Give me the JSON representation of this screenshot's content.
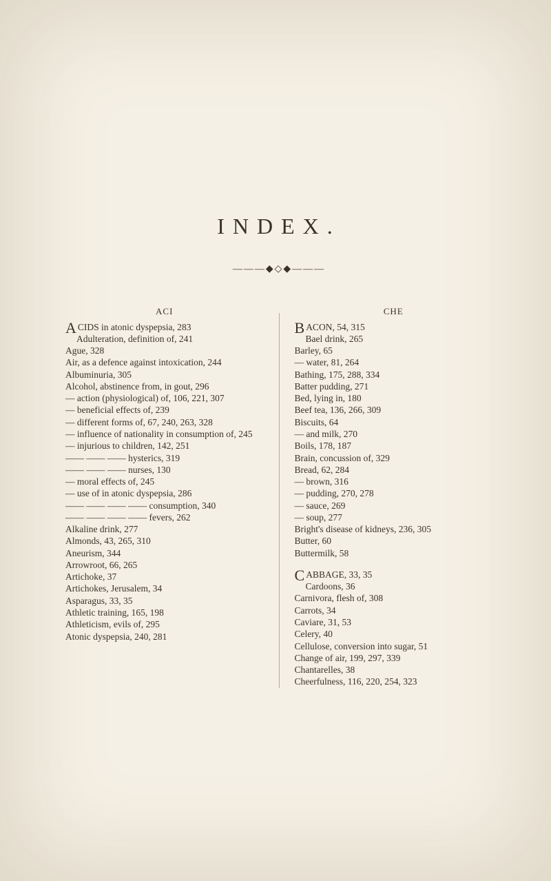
{
  "title": "INDEX.",
  "divider": "———◆◇◆———",
  "left": {
    "header": "ACI",
    "dropcap": "A",
    "first": "CIDS in atonic dyspepsia, 283",
    "first_cont": "Adulteration, definition of, 241",
    "entries": [
      "Ague, 328",
      "Air, as a defence against intoxication, 244",
      "Albuminuria, 305",
      "Alcohol, abstinence from, in gout, 296",
      "— action (physiological) of, 106, 221, 307",
      "— beneficial effects of, 239",
      "— different forms of, 67, 240, 263, 328",
      "— influence of nationality in consumption of, 245",
      "— injurious to children, 142, 251",
      "—— —— —— hysterics, 319",
      "—— —— —— nurses, 130",
      "— moral effects of, 245",
      "— use of in atonic dyspepsia, 286",
      "—— —— —— —— consumption, 340",
      "—— —— —— —— fevers, 262",
      "Alkaline drink, 277",
      "Almonds, 43, 265, 310",
      "Aneurism, 344",
      "Arrowroot, 66, 265",
      "Artichoke, 37",
      "Artichokes, Jerusalem, 34",
      "Asparagus, 33, 35",
      "Athletic training, 165, 198",
      "Athleticism, evils of, 295",
      "Atonic dyspepsia, 240, 281"
    ]
  },
  "right": {
    "header": "CHE",
    "dropcap": "B",
    "first": "ACON, 54, 315",
    "first_cont": "Bael drink, 265",
    "entries": [
      "Barley, 65",
      "— water, 81, 264",
      "Bathing, 175, 288, 334",
      "Batter pudding, 271",
      "Bed, lying in, 180",
      "Beef tea, 136, 266, 309",
      "Biscuits, 64",
      "— and milk, 270",
      "Boils, 178, 187",
      "Brain, concussion of, 329",
      "Bread, 62, 284",
      "— brown, 316",
      "— pudding, 270, 278",
      "— sauce, 269",
      "— soup, 277",
      "Bright's disease of kidneys, 236, 305",
      "Butter, 60",
      "Buttermilk, 58"
    ],
    "dropcap2": "C",
    "first2": "ABBAGE, 33, 35",
    "first2_cont": "Cardoons, 36",
    "entries2": [
      "Carnivora, flesh of, 308",
      "Carrots, 34",
      "Caviare, 31, 53",
      "Celery, 40",
      "Cellulose, conversion into sugar, 51",
      "Change of air, 199, 297, 339",
      "Chantarelles, 38",
      "Cheerfulness, 116, 220, 254, 323"
    ]
  },
  "colors": {
    "background": "#f5f0e5",
    "text": "#3a3228",
    "divider_line": "#b5ab95"
  }
}
